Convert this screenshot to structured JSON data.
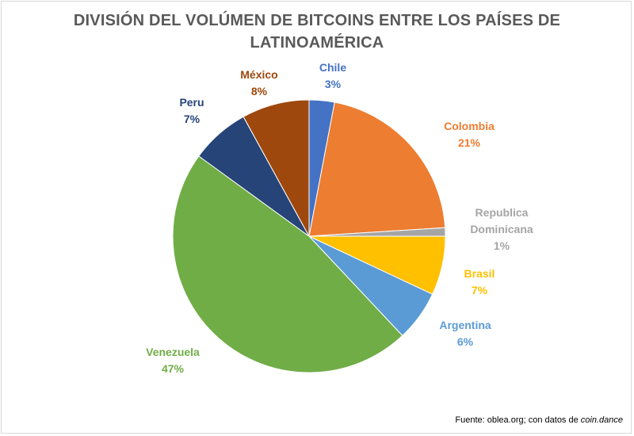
{
  "chart_data": {
    "type": "pie",
    "title_lines": [
      "DIVISIÓN DEL VOLÚMEN DE BITCOINS ENTRE LOS PAÍSES DE",
      "LATINOAMÉRICA"
    ],
    "slices": [
      {
        "name": "Chile",
        "name_lines": [
          "Chile"
        ],
        "value": 3,
        "label": "3%",
        "color": "#4472C4"
      },
      {
        "name": "Colombia",
        "name_lines": [
          "Colombia"
        ],
        "value": 21,
        "label": "21%",
        "color": "#ED7D31"
      },
      {
        "name": "Republica Dominicana",
        "name_lines": [
          "Republica",
          "Dominicana"
        ],
        "value": 1,
        "label": "1%",
        "color": "#A5A5A5"
      },
      {
        "name": "Brasil",
        "name_lines": [
          "Brasil"
        ],
        "value": 7,
        "label": "7%",
        "color": "#FFC000"
      },
      {
        "name": "Argentina",
        "name_lines": [
          "Argentina"
        ],
        "value": 6,
        "label": "6%",
        "color": "#5B9BD5"
      },
      {
        "name": "Venezuela",
        "name_lines": [
          "Venezuela"
        ],
        "value": 47,
        "label": "47%",
        "color": "#70AD47"
      },
      {
        "name": "Peru",
        "name_lines": [
          "Peru"
        ],
        "value": 7,
        "label": "7%",
        "color": "#264478"
      },
      {
        "name": "México",
        "name_lines": [
          "México"
        ],
        "value": 8,
        "label": "8%",
        "color": "#9E480E"
      }
    ],
    "label_colors": {
      "Chile": "#4472C4",
      "Colombia": "#ED7D31",
      "Republica Dominicana": "#A5A5A5",
      "Brasil": "#FFC000",
      "Argentina": "#5B9BD5",
      "Venezuela": "#70AD47",
      "Peru": "#264478",
      "México": "#9E480E"
    }
  },
  "source": {
    "prefix": "Fuente: oblea.org; con datos de ",
    "italic": "coin.dance"
  }
}
